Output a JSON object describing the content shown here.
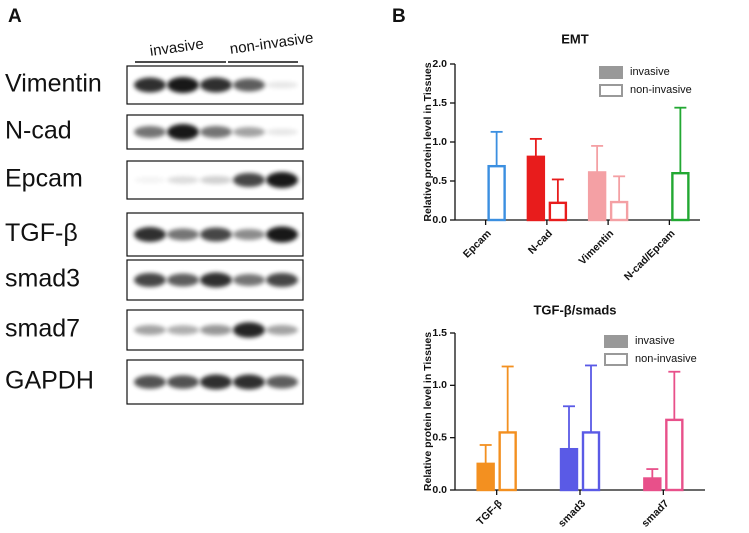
{
  "panel_a": {
    "label": "A",
    "columns": [
      "invasive",
      "non-invasive"
    ],
    "rows": [
      "Vimentin",
      "N-cad",
      "Epcam",
      "TGF-β",
      "smad3",
      "smad7",
      "GAPDH"
    ]
  },
  "panel_b_label": "B",
  "chart_data": [
    {
      "type": "bar",
      "title": "EMT",
      "y_label": "Relative protein level in Tissues",
      "categories": [
        "Epcam",
        "N-cad",
        "Vimentin",
        "N-cad/Epcam"
      ],
      "colors": [
        "#3b8fe0",
        "#e81c1c",
        "#f4a0a4",
        "#22a832"
      ],
      "series": [
        {
          "name": "invasive",
          "color": "#999999",
          "style": "filled",
          "values": [
            null,
            0.81,
            0.61,
            null
          ],
          "errors": [
            null,
            0.23,
            0.34,
            null
          ]
        },
        {
          "name": "non-invasive",
          "color": "#999999",
          "style": "outline",
          "values": [
            0.69,
            0.22,
            0.23,
            0.6
          ],
          "errors": [
            0.44,
            0.3,
            0.33,
            0.84
          ]
        }
      ],
      "ylim": [
        0,
        2
      ],
      "yticks": [
        {
          "value": 0,
          "label": "0.0"
        },
        0.5,
        {
          "value": 1,
          "label": "1.0"
        },
        1.5,
        {
          "value": 2,
          "label": "2.0"
        }
      ],
      "legend": "upper right"
    },
    {
      "type": "bar",
      "title": "TGF-β/smads",
      "y_label": "Relative protein level in Tissues",
      "categories": [
        "TGF-β",
        "smad3",
        "smad7"
      ],
      "colors": [
        "#f39020",
        "#5a5ae6",
        "#e8508a"
      ],
      "series": [
        {
          "name": "invasive",
          "color": "#999999",
          "style": "filled",
          "values": [
            0.25,
            0.39,
            0.11
          ],
          "errors": [
            0.18,
            0.41,
            0.09
          ]
        },
        {
          "name": "non-invasive",
          "color": "#999999",
          "style": "outline",
          "values": [
            0.55,
            0.55,
            0.67
          ],
          "errors": [
            0.63,
            0.64,
            0.46
          ]
        }
      ],
      "ylim": [
        0,
        1.5
      ],
      "yticks": [
        {
          "value": 0,
          "label": "0.0"
        },
        0.5,
        {
          "value": 1,
          "label": "1.0"
        },
        1.5
      ],
      "legend": "upper right"
    }
  ]
}
